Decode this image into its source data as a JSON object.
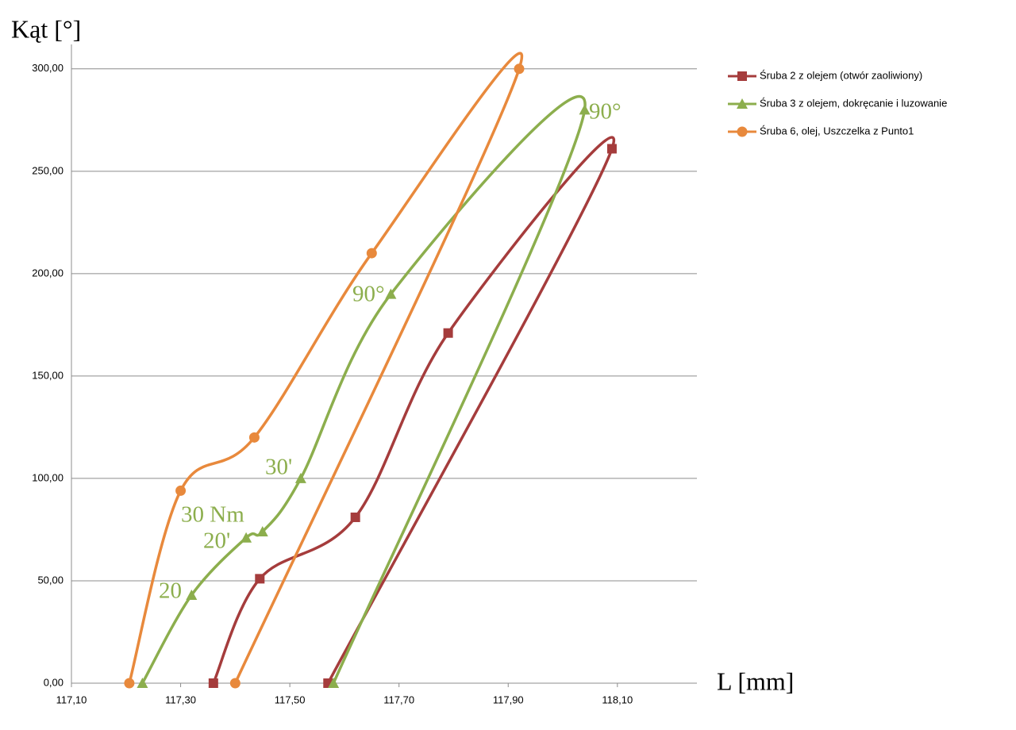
{
  "chart_data": {
    "type": "scatter",
    "y_label": "Kąt [°]",
    "x_label": "L [mm]",
    "xlim": [
      117.1,
      118.25
    ],
    "ylim": [
      0,
      310
    ],
    "xticks": [
      {
        "value": 117.1,
        "label": "117,10"
      },
      {
        "value": 117.3,
        "label": "117,30"
      },
      {
        "value": 117.5,
        "label": "117,50"
      },
      {
        "value": 117.7,
        "label": "117,70"
      },
      {
        "value": 117.9,
        "label": "117,90"
      },
      {
        "value": 118.1,
        "label": "118,10"
      }
    ],
    "yticks": [
      {
        "value": 0,
        "label": "0,00"
      },
      {
        "value": 50,
        "label": "50,00"
      },
      {
        "value": 100,
        "label": "100,00"
      },
      {
        "value": 150,
        "label": "150,00"
      },
      {
        "value": 200,
        "label": "200,00"
      },
      {
        "value": 250,
        "label": "250,00"
      },
      {
        "value": 300,
        "label": "300,00"
      }
    ],
    "grid": true,
    "legend": "right",
    "series": [
      {
        "name": "Śruba 2 z olejem (otwór zaoliwiony)",
        "color": "#a53c3c",
        "marker": "square",
        "x": [
          117.36,
          117.445,
          117.62,
          117.79,
          118.09,
          117.57
        ],
        "values": [
          0,
          51,
          81,
          171,
          261,
          0
        ]
      },
      {
        "name": "Śruba 3 z olejem, dokręcanie i luzowanie",
        "color": "#8cae4d",
        "marker": "triangle",
        "x": [
          117.23,
          117.32,
          117.42,
          117.45,
          117.52,
          117.685,
          118.04,
          117.58
        ],
        "values": [
          0,
          43,
          71,
          74,
          100,
          190,
          280,
          0
        ]
      },
      {
        "name": "Śruba 6, olej, Uszczelka z Punto1",
        "color": "#e8893c",
        "marker": "circle",
        "x": [
          117.206,
          117.3,
          117.435,
          117.65,
          117.92,
          117.4
        ],
        "values": [
          0,
          94,
          120,
          210,
          300,
          0
        ]
      }
    ],
    "annotations": [
      "90°",
      "90°",
      "30'",
      "30 Nm",
      "20'",
      "20"
    ]
  }
}
